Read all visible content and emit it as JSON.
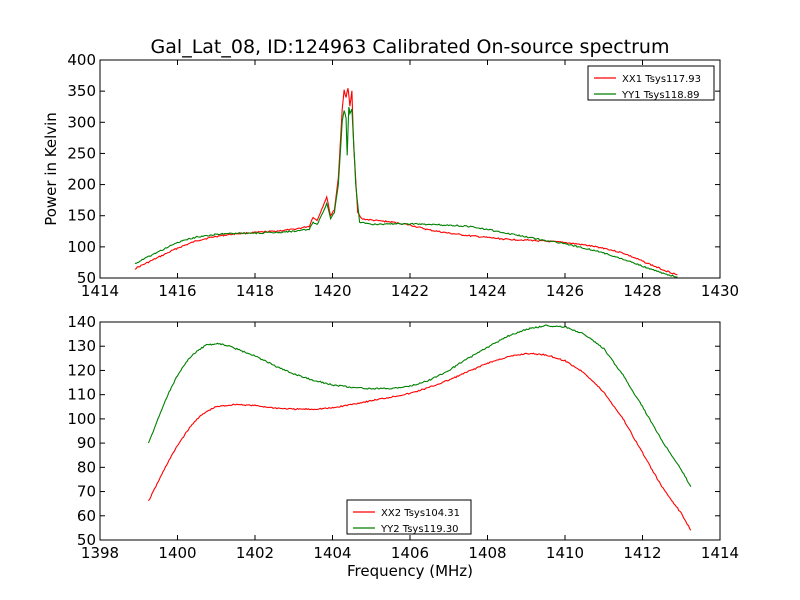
{
  "figure": {
    "title": "Gal_Lat_08, ID:124963 Calibrated On-source spectrum",
    "ylabel": "Power in Kelvin",
    "xlabel": "Frequency (MHz)"
  },
  "chart_data": [
    {
      "type": "line",
      "title": "Gal_Lat_08, ID:124963 Calibrated On-source spectrum",
      "xlabel": "",
      "ylabel": "Power in Kelvin",
      "xlim": [
        1414,
        1430
      ],
      "ylim": [
        50,
        400
      ],
      "xticks": [
        1414,
        1416,
        1418,
        1420,
        1422,
        1424,
        1426,
        1428,
        1430
      ],
      "yticks": [
        50,
        100,
        150,
        200,
        250,
        300,
        350,
        400
      ],
      "grid": false,
      "legend": "top-right",
      "series": [
        {
          "name": "XX1 Tsys117.93",
          "color": "#ff0000",
          "x": [
            1414.9,
            1415.5,
            1416.0,
            1416.5,
            1417.0,
            1417.5,
            1418.0,
            1418.5,
            1419.0,
            1419.4,
            1419.5,
            1419.6,
            1419.75,
            1419.85,
            1419.95,
            1420.05,
            1420.15,
            1420.25,
            1420.3,
            1420.35,
            1420.4,
            1420.45,
            1420.5,
            1420.55,
            1420.65,
            1420.75,
            1421.0,
            1421.5,
            1422.0,
            1422.5,
            1423.0,
            1423.5,
            1424.0,
            1424.5,
            1425.0,
            1425.5,
            1426.0,
            1426.5,
            1427.0,
            1427.5,
            1428.0,
            1428.5,
            1428.9
          ],
          "y": [
            65,
            83,
            98,
            110,
            117,
            121,
            123,
            125,
            128,
            133,
            148,
            142,
            165,
            180,
            150,
            160,
            210,
            320,
            352,
            340,
            355,
            325,
            350,
            260,
            155,
            145,
            143,
            140,
            135,
            127,
            122,
            118,
            115,
            112,
            111,
            109,
            107,
            103,
            98,
            90,
            77,
            64,
            55
          ]
        },
        {
          "name": "YY1 Tsys118.89",
          "color": "#008000",
          "x": [
            1414.9,
            1415.5,
            1416.0,
            1416.5,
            1417.0,
            1417.5,
            1418.0,
            1418.5,
            1419.0,
            1419.4,
            1419.5,
            1419.6,
            1419.75,
            1419.85,
            1419.95,
            1420.05,
            1420.15,
            1420.25,
            1420.3,
            1420.35,
            1420.38,
            1420.42,
            1420.45,
            1420.5,
            1420.6,
            1420.7,
            1421.0,
            1421.5,
            1422.0,
            1422.5,
            1423.0,
            1423.5,
            1424.0,
            1424.5,
            1425.0,
            1425.5,
            1426.0,
            1426.5,
            1427.0,
            1427.5,
            1428.0,
            1428.5,
            1428.9
          ],
          "y": [
            73,
            92,
            107,
            116,
            120,
            122,
            122,
            123,
            125,
            128,
            140,
            135,
            155,
            170,
            145,
            155,
            200,
            300,
            320,
            305,
            248,
            325,
            315,
            322,
            200,
            140,
            136,
            137,
            137,
            136,
            135,
            133,
            128,
            122,
            116,
            110,
            105,
            98,
            90,
            80,
            69,
            58,
            52
          ]
        }
      ]
    },
    {
      "type": "line",
      "title": "",
      "xlabel": "Frequency (MHz)",
      "ylabel": "",
      "xlim": [
        1398,
        1414
      ],
      "ylim": [
        50,
        140
      ],
      "xticks": [
        1398,
        1400,
        1402,
        1404,
        1406,
        1408,
        1410,
        1412,
        1414
      ],
      "yticks": [
        50,
        60,
        70,
        80,
        90,
        100,
        110,
        120,
        130,
        140
      ],
      "grid": false,
      "legend": "bottom-center",
      "series": [
        {
          "name": "XX2 Tsys104.31",
          "color": "#ff0000",
          "x": [
            1399.25,
            1399.5,
            1399.75,
            1400.0,
            1400.25,
            1400.5,
            1400.75,
            1401.0,
            1401.25,
            1401.5,
            1402.0,
            1402.5,
            1403.0,
            1403.5,
            1404.0,
            1404.5,
            1405.0,
            1405.5,
            1406.0,
            1406.5,
            1407.0,
            1407.5,
            1408.0,
            1408.5,
            1409.0,
            1409.5,
            1410.0,
            1410.5,
            1411.0,
            1411.5,
            1412.0,
            1412.5,
            1413.0,
            1413.25
          ],
          "y": [
            66,
            74,
            82,
            89,
            95,
            100,
            103,
            105,
            105.5,
            106,
            105.5,
            104.5,
            104,
            104,
            104.5,
            106,
            107.5,
            109,
            110.5,
            113,
            116,
            119.5,
            123,
            125.5,
            127,
            126.5,
            124,
            119,
            111,
            100,
            86,
            72,
            61,
            54
          ]
        },
        {
          "name": "YY2 Tsys119.30",
          "color": "#008000",
          "x": [
            1399.25,
            1399.5,
            1399.75,
            1400.0,
            1400.25,
            1400.5,
            1400.75,
            1401.0,
            1401.25,
            1401.5,
            1402.0,
            1402.5,
            1403.0,
            1403.5,
            1404.0,
            1404.5,
            1405.0,
            1405.5,
            1406.0,
            1406.5,
            1407.0,
            1407.5,
            1408.0,
            1408.5,
            1409.0,
            1409.5,
            1410.0,
            1410.5,
            1411.0,
            1411.5,
            1412.0,
            1412.5,
            1413.0,
            1413.25
          ],
          "y": [
            90,
            100,
            110,
            118,
            124,
            128,
            130.5,
            131,
            130.5,
            129,
            126,
            122,
            118.5,
            116,
            114,
            113,
            112.5,
            112.5,
            113.5,
            116,
            120,
            125,
            129.5,
            134,
            137,
            138.5,
            138,
            135,
            129,
            118,
            105,
            91,
            79,
            72
          ]
        }
      ]
    }
  ]
}
